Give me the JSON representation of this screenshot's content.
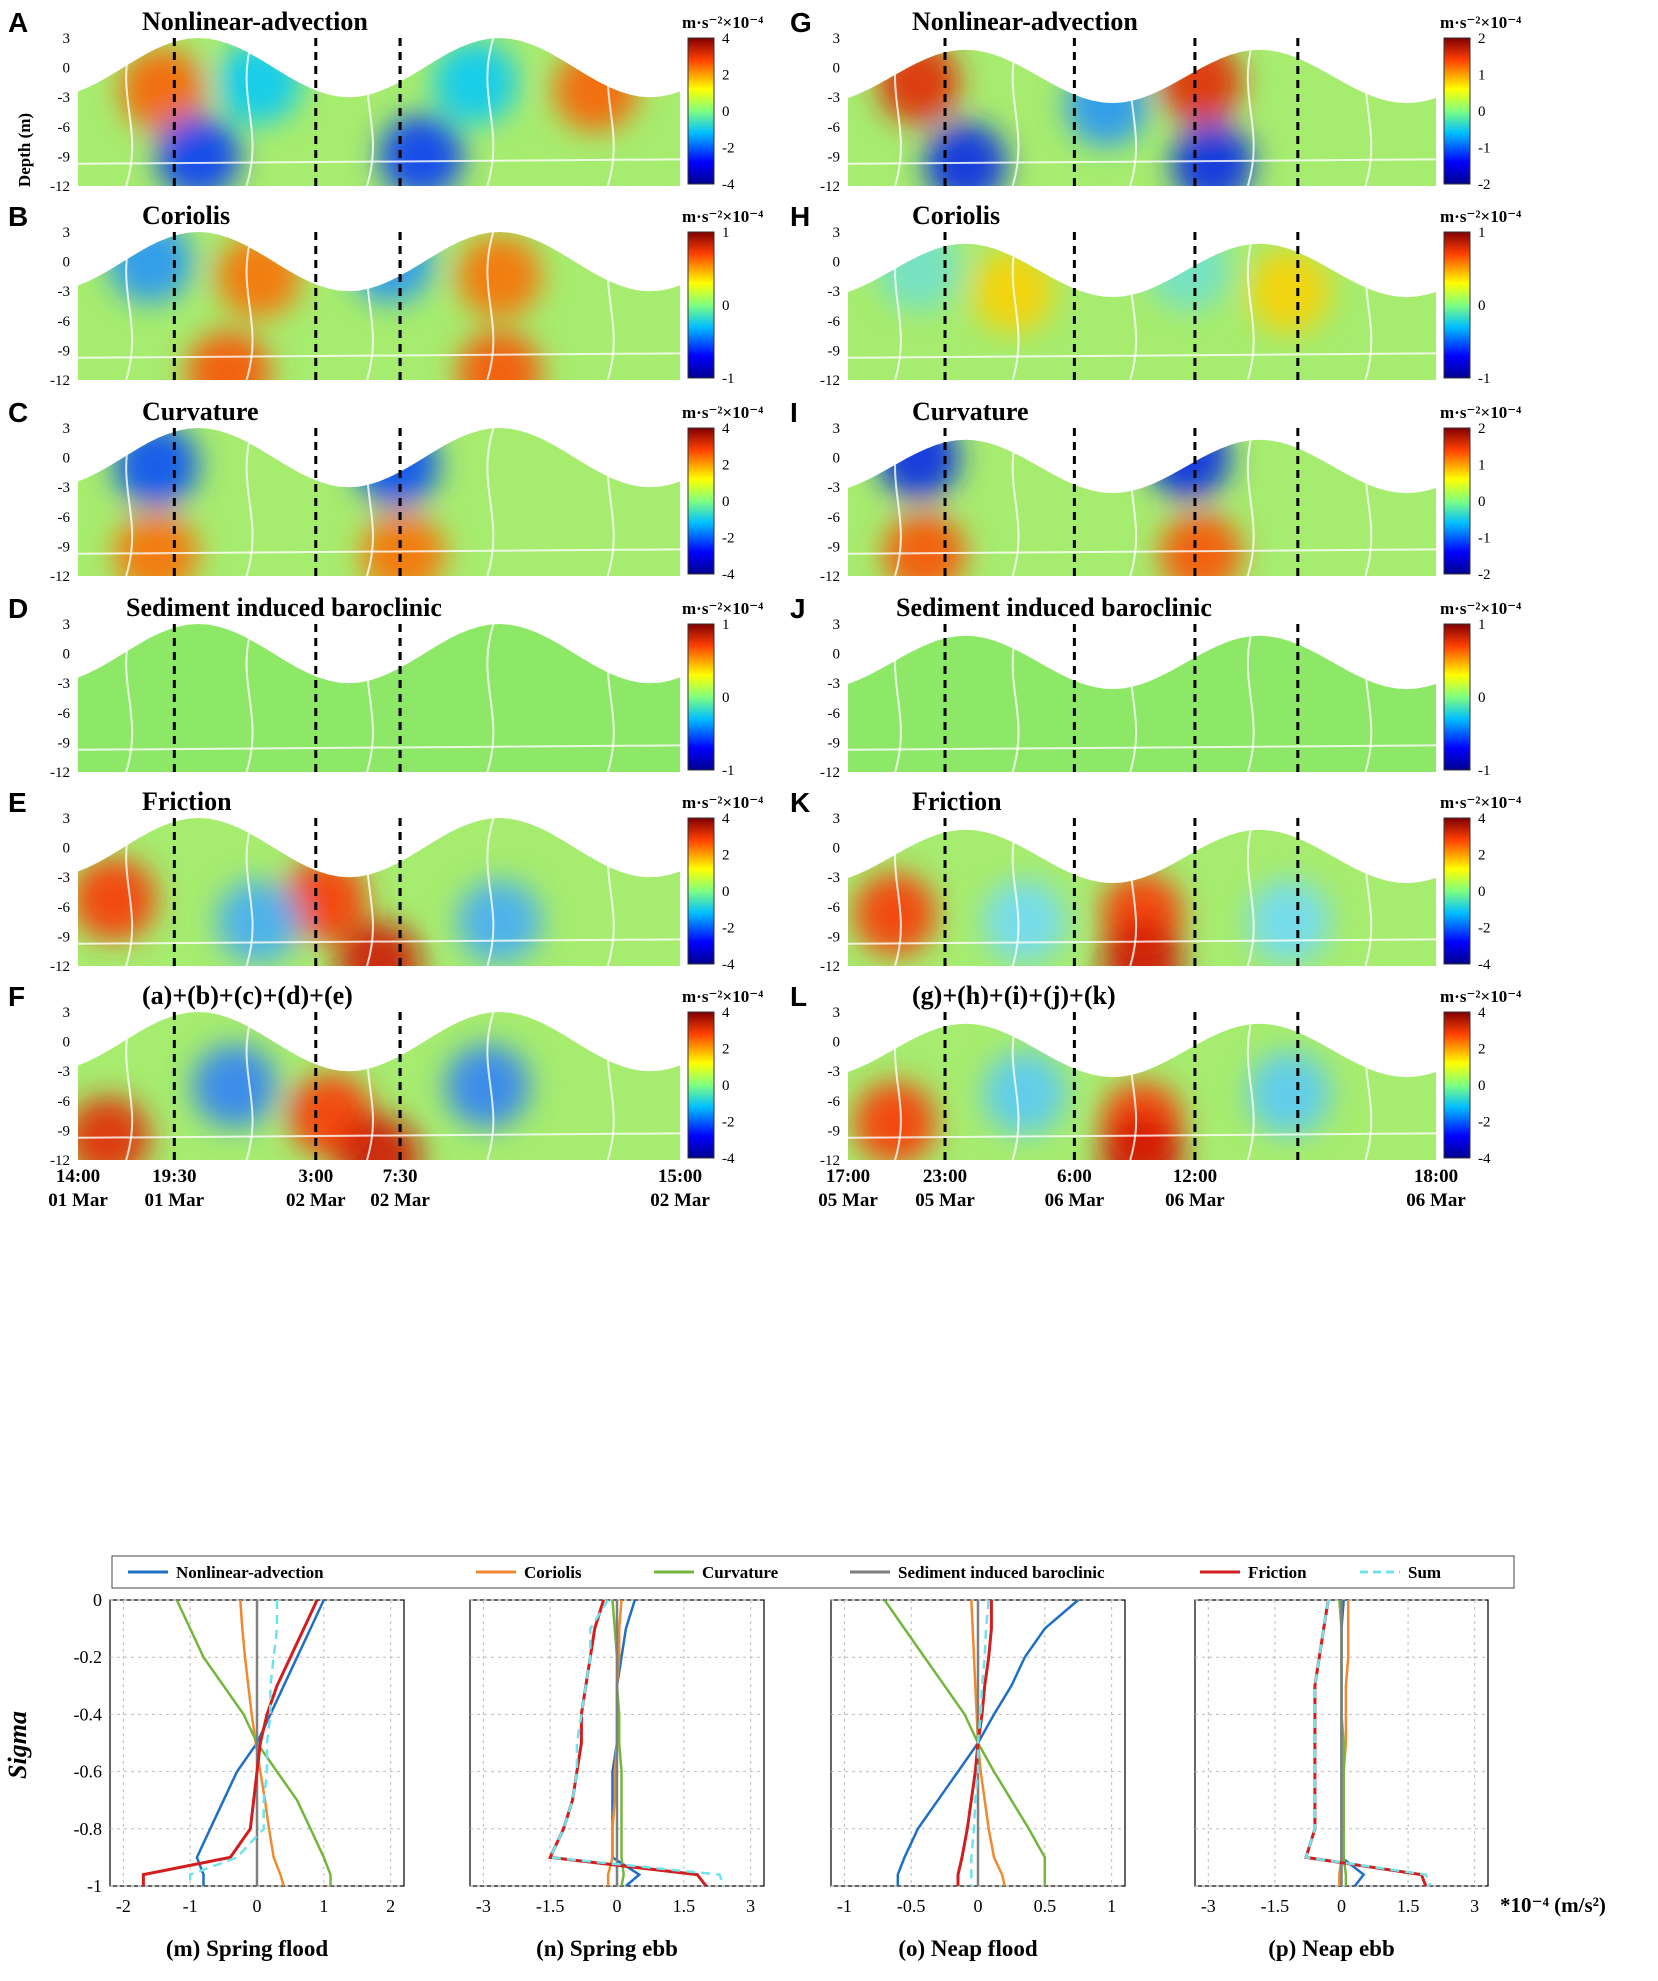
{
  "colors": {
    "colormap": [
      "#00008f",
      "#0000ff",
      "#00bfff",
      "#7fff7f",
      "#ffff00",
      "#ff4000",
      "#800000"
    ],
    "contour": "#ffffff",
    "dashed": "#000000",
    "series": [
      "#1f6fc4",
      "#f08a30",
      "#74b63c",
      "#7f7f7f",
      "#d21e1e",
      "#6fe3ec"
    ]
  },
  "unit_label": "m·s⁻²×10⁻⁴",
  "y_axis_label": "Depth (m)",
  "depth_ticks": [
    "3",
    "0",
    "-3",
    "-6",
    "-9",
    "-12"
  ],
  "spring": {
    "panels": [
      {
        "letter": "A",
        "title": "Nonlinear-advection",
        "cbar": [
          "4",
          "2",
          "0",
          "-2",
          "-4"
        ]
      },
      {
        "letter": "B",
        "title": "Coriolis",
        "cbar": [
          "1",
          "0",
          "-1"
        ]
      },
      {
        "letter": "C",
        "title": "Curvature",
        "cbar": [
          "4",
          "2",
          "0",
          "-2",
          "-4"
        ]
      },
      {
        "letter": "D",
        "title": "Sediment induced baroclinic",
        "cbar": [
          "1",
          "0",
          "-1"
        ]
      },
      {
        "letter": "E",
        "title": "Friction",
        "cbar": [
          "4",
          "2",
          "0",
          "-2",
          "-4"
        ]
      },
      {
        "letter": "F",
        "title": "(a)+(b)+(c)+(d)+(e)",
        "cbar": [
          "4",
          "2",
          "0",
          "-2",
          "-4"
        ]
      }
    ],
    "time_labels": [
      {
        "time": "14:00",
        "date": "01 Mar"
      },
      {
        "time": "19:30",
        "date": "01 Mar"
      },
      {
        "time": "3:00",
        "date": "02 Mar"
      },
      {
        "time": "7:30",
        "date": "02 Mar"
      },
      {
        "time": "15:00",
        "date": "02 Mar"
      }
    ]
  },
  "neap": {
    "panels": [
      {
        "letter": "G",
        "title": "Nonlinear-advection",
        "cbar": [
          "2",
          "1",
          "0",
          "-1",
          "-2"
        ]
      },
      {
        "letter": "H",
        "title": "Coriolis",
        "cbar": [
          "1",
          "0",
          "-1"
        ]
      },
      {
        "letter": "I",
        "title": "Curvature",
        "cbar": [
          "2",
          "1",
          "0",
          "-1",
          "-2"
        ]
      },
      {
        "letter": "J",
        "title": "Sediment induced baroclinic",
        "cbar": [
          "1",
          "0",
          "-1"
        ]
      },
      {
        "letter": "K",
        "title": "Friction",
        "cbar": [
          "4",
          "2",
          "0",
          "-2",
          "-4"
        ]
      },
      {
        "letter": "L",
        "title": "(g)+(h)+(i)+(j)+(k)",
        "cbar": [
          "4",
          "2",
          "0",
          "-2",
          "-4"
        ]
      }
    ],
    "time_labels": [
      {
        "time": "17:00",
        "date": "05 Mar"
      },
      {
        "time": "23:00",
        "date": "05 Mar"
      },
      {
        "time": "6:00",
        "date": "06 Mar"
      },
      {
        "time": "12:00",
        "date": "06 Mar"
      },
      {
        "time": "18:00",
        "date": "06 Mar"
      }
    ]
  },
  "legend": [
    "Nonlinear-advection",
    "Coriolis",
    "Curvature",
    "Sediment induced baroclinic",
    "Friction",
    "Sum"
  ],
  "profile_ylabel": "Sigma",
  "profile_yticks": [
    "0",
    "-0.2",
    "-0.4",
    "-0.6",
    "-0.8",
    "-1"
  ],
  "profile_unit": "*10⁻⁴ (m/s²)",
  "chart_data": {
    "type": "line",
    "sigma": [
      0,
      -0.1,
      -0.2,
      -0.3,
      -0.4,
      -0.5,
      -0.6,
      -0.7,
      -0.8,
      -0.9,
      -0.96,
      -1.0
    ],
    "profiles": [
      {
        "title": "(m) Spring flood",
        "xlim": [
          -2.2,
          2.2
        ],
        "xticks": [
          "-2",
          "-1",
          "0",
          "1",
          "2"
        ],
        "xtick_values": [
          -2,
          -1,
          0,
          1,
          2
        ],
        "series": [
          {
            "name": "Nonlinear-advection",
            "values": [
              1.0,
              0.8,
              0.6,
              0.4,
              0.2,
              0.0,
              -0.3,
              -0.5,
              -0.7,
              -0.9,
              -0.8,
              -0.8
            ]
          },
          {
            "name": "Coriolis",
            "values": [
              -0.25,
              -0.22,
              -0.18,
              -0.13,
              -0.08,
              -0.02,
              0.05,
              0.12,
              0.18,
              0.25,
              0.35,
              0.4
            ]
          },
          {
            "name": "Curvature",
            "values": [
              -1.2,
              -1.0,
              -0.8,
              -0.5,
              -0.2,
              0.0,
              0.3,
              0.6,
              0.8,
              1.0,
              1.1,
              1.1
            ]
          },
          {
            "name": "Sediment induced baroclinic",
            "values": [
              0.0,
              0.0,
              0.0,
              0.0,
              0.0,
              0.0,
              0.0,
              0.0,
              0.0,
              0.0,
              0.0,
              0.0
            ]
          },
          {
            "name": "Friction",
            "values": [
              0.9,
              0.7,
              0.5,
              0.3,
              0.15,
              0.05,
              0.0,
              -0.05,
              -0.1,
              -0.4,
              -1.7,
              -1.7
            ]
          },
          {
            "name": "Sum",
            "values": [
              0.3,
              0.3,
              0.25,
              0.2,
              0.2,
              0.15,
              0.15,
              0.1,
              0.1,
              -0.3,
              -1.0,
              -1.0
            ]
          }
        ]
      },
      {
        "title": "(n) Spring ebb",
        "xlim": [
          -3.3,
          3.3
        ],
        "xticks": [
          "-3",
          "-1.5",
          "0",
          "1.5",
          "3"
        ],
        "xtick_values": [
          -3,
          -1.5,
          0,
          1.5,
          3
        ],
        "series": [
          {
            "name": "Nonlinear-advection",
            "values": [
              0.4,
              0.2,
              0.1,
              0.0,
              0.0,
              0.0,
              -0.1,
              -0.1,
              -0.1,
              -0.1,
              0.5,
              0.2
            ]
          },
          {
            "name": "Coriolis",
            "values": [
              0.1,
              0.05,
              0.05,
              0.0,
              0.0,
              0.0,
              -0.05,
              -0.05,
              -0.1,
              -0.1,
              -0.2,
              -0.2
            ]
          },
          {
            "name": "Curvature",
            "values": [
              -0.1,
              -0.05,
              0.0,
              0.0,
              0.05,
              0.05,
              0.1,
              0.1,
              0.1,
              0.1,
              0.15,
              0.1
            ]
          },
          {
            "name": "Sediment induced baroclinic",
            "values": [
              0.0,
              0.0,
              0.0,
              0.0,
              0.0,
              0.0,
              0.0,
              0.0,
              0.0,
              0.0,
              0.0,
              0.0
            ]
          },
          {
            "name": "Friction",
            "values": [
              -0.3,
              -0.5,
              -0.6,
              -0.7,
              -0.8,
              -0.8,
              -0.9,
              -1.0,
              -1.2,
              -1.5,
              1.8,
              2.0
            ]
          },
          {
            "name": "Sum",
            "values": [
              -0.2,
              -0.6,
              -0.6,
              -0.7,
              -0.8,
              -0.9,
              -0.9,
              -1.0,
              -1.2,
              -1.5,
              2.3,
              2.4
            ]
          }
        ]
      },
      {
        "title": "(o) Neap flood",
        "xlim": [
          -1.1,
          1.1
        ],
        "xticks": [
          "-1",
          "-0.5",
          "0",
          "0.5",
          "1"
        ],
        "xtick_values": [
          -1,
          -0.5,
          0,
          0.5,
          1
        ],
        "series": [
          {
            "name": "Nonlinear-advection",
            "values": [
              0.75,
              0.5,
              0.35,
              0.25,
              0.12,
              0.0,
              -0.15,
              -0.3,
              -0.45,
              -0.55,
              -0.6,
              -0.6
            ]
          },
          {
            "name": "Coriolis",
            "values": [
              -0.05,
              -0.04,
              -0.03,
              -0.02,
              -0.01,
              0.0,
              0.02,
              0.05,
              0.08,
              0.12,
              0.18,
              0.2
            ]
          },
          {
            "name": "Curvature",
            "values": [
              -0.7,
              -0.55,
              -0.4,
              -0.25,
              -0.1,
              0.0,
              0.12,
              0.25,
              0.38,
              0.5,
              0.5,
              0.5
            ]
          },
          {
            "name": "Sediment induced baroclinic",
            "values": [
              0.0,
              0.0,
              0.0,
              0.0,
              0.0,
              0.0,
              0.0,
              0.0,
              0.0,
              0.0,
              0.0,
              0.0
            ]
          },
          {
            "name": "Friction",
            "values": [
              0.1,
              0.1,
              0.08,
              0.05,
              0.03,
              0.0,
              -0.02,
              -0.05,
              -0.08,
              -0.12,
              -0.15,
              -0.15
            ]
          },
          {
            "name": "Sum",
            "values": [
              0.08,
              0.06,
              0.05,
              0.03,
              0.02,
              0.0,
              0.0,
              -0.02,
              -0.03,
              -0.05,
              -0.05,
              -0.05
            ]
          }
        ]
      },
      {
        "title": "(p) Neap ebb",
        "xlim": [
          -3.3,
          3.3
        ],
        "xticks": [
          "-3",
          "-1.5",
          "0",
          "1.5",
          "3"
        ],
        "xtick_values": [
          -3,
          -1.5,
          0,
          1.5,
          3
        ],
        "series": [
          {
            "name": "Nonlinear-advection",
            "values": [
              0.05,
              0.0,
              0.0,
              0.0,
              0.0,
              0.0,
              0.0,
              0.0,
              0.0,
              0.0,
              0.5,
              0.3
            ]
          },
          {
            "name": "Coriolis",
            "values": [
              0.15,
              0.15,
              0.15,
              0.1,
              0.1,
              0.1,
              0.05,
              0.05,
              0.05,
              0.0,
              -0.05,
              -0.05
            ]
          },
          {
            "name": "Curvature",
            "values": [
              -0.05,
              0.0,
              0.0,
              0.0,
              0.0,
              0.05,
              0.05,
              0.05,
              0.05,
              0.05,
              0.1,
              0.1
            ]
          },
          {
            "name": "Sediment induced baroclinic",
            "values": [
              0.0,
              0.0,
              0.0,
              0.0,
              0.0,
              0.0,
              0.0,
              0.0,
              0.0,
              0.0,
              0.0,
              0.0
            ]
          },
          {
            "name": "Friction",
            "values": [
              -0.3,
              -0.4,
              -0.5,
              -0.6,
              -0.6,
              -0.6,
              -0.6,
              -0.6,
              -0.6,
              -0.8,
              1.8,
              1.9
            ]
          },
          {
            "name": "Sum",
            "values": [
              -0.3,
              -0.4,
              -0.5,
              -0.6,
              -0.6,
              -0.6,
              -0.6,
              -0.6,
              -0.6,
              -0.8,
              1.9,
              2.0
            ]
          }
        ]
      }
    ]
  }
}
